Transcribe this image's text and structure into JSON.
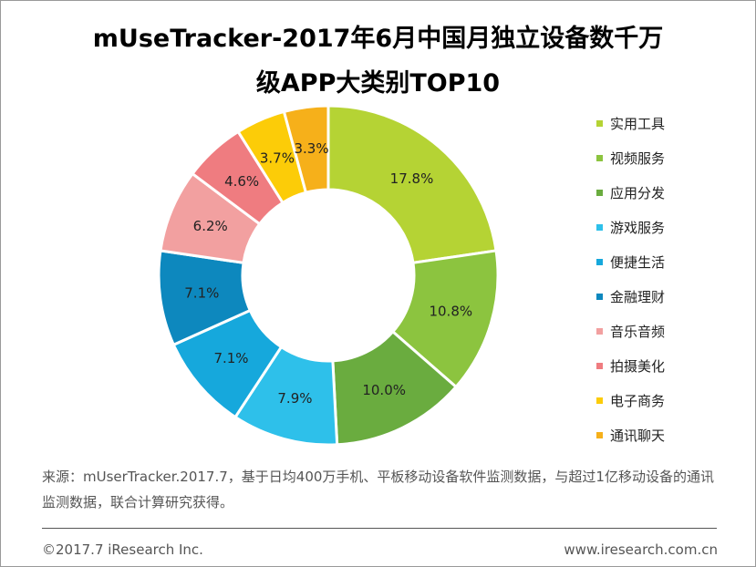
{
  "title": {
    "line1": "mUseTracker-2017年6月中国月独立设备数千万",
    "line2": "级APP大类别TOP10"
  },
  "chart_data": {
    "type": "pie",
    "donut": true,
    "categories": [
      "实用工具",
      "视频服务",
      "应用分发",
      "游戏服务",
      "便捷生活",
      "金融理财",
      "音乐音频",
      "拍摄美化",
      "电子商务",
      "通讯聊天"
    ],
    "values": [
      17.8,
      10.8,
      10.0,
      7.9,
      7.1,
      7.1,
      6.2,
      4.6,
      3.7,
      3.3
    ],
    "labels": [
      "17.8%",
      "10.8%",
      "10.0%",
      "7.9%",
      "7.1%",
      "7.1%",
      "6.2%",
      "4.6%",
      "3.7%",
      "3.3%"
    ],
    "colors": [
      "#b5d334",
      "#8cc43f",
      "#6aac3f",
      "#2ec0ea",
      "#16a8dc",
      "#0d88be",
      "#f2a0a0",
      "#ef7c80",
      "#fccc08",
      "#f6b01a"
    ],
    "legend_position": "right"
  },
  "source": {
    "text": "来源：mUserTracker.2017.7，基于日均400万手机、平板移动设备软件监测数据，与超过1亿移动设备的通讯监测数据，联合计算研究获得。"
  },
  "footer": {
    "copyright": "©2017.7 iResearch Inc.",
    "website": "www.iresearch.com.cn"
  }
}
